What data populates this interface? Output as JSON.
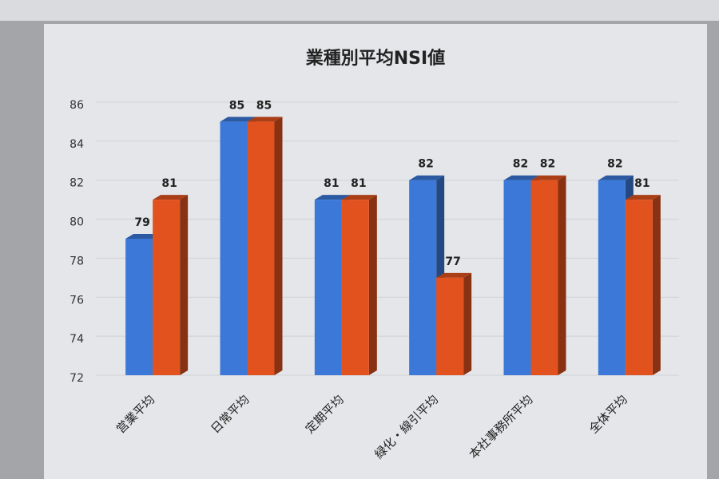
{
  "chart_data": {
    "type": "bar3d",
    "title": "業種別平均NSI値",
    "categories": [
      "営業平均",
      "日常平均",
      "定期平均",
      "緑化・線引平均",
      "本社事務所平均",
      "全体平均"
    ],
    "series": [
      {
        "color": "#3b78d8",
        "values": [
          79,
          85,
          81,
          82,
          82,
          82
        ]
      },
      {
        "color": "#e2521f",
        "values": [
          81,
          85,
          81,
          77,
          82,
          81
        ]
      }
    ],
    "ylim": [
      72,
      86
    ],
    "yticks": [
      72,
      74,
      76,
      78,
      80,
      82,
      84,
      86
    ],
    "grid": true
  }
}
